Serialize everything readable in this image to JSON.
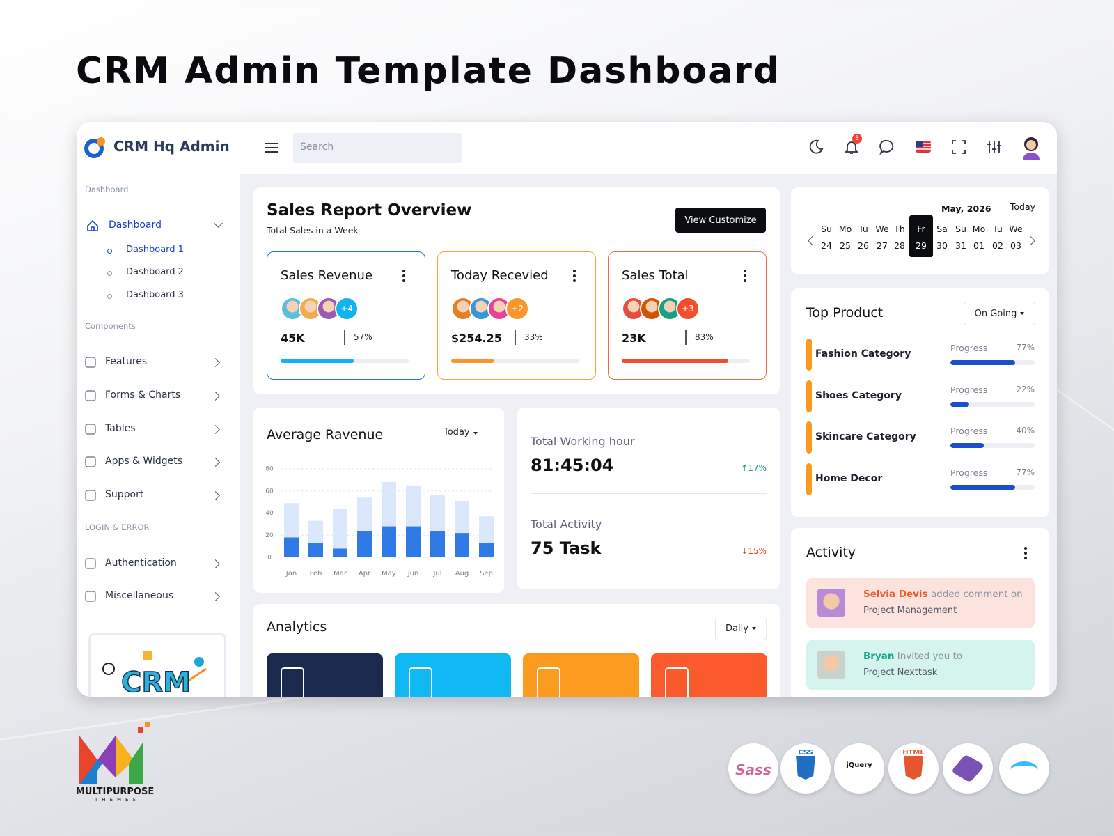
{
  "banner": {
    "title": "CRM Admin Template Dashboard"
  },
  "header": {
    "brand": "CRM Hq Admin",
    "search_placeholder": "Search",
    "notifications": 8
  },
  "sidebar": {
    "sections": [
      {
        "title": "Dashboard",
        "items": [
          {
            "label": "Dashboard",
            "children": [
              "Dashboard 1",
              "Dashboard 2",
              "Dashboard 3"
            ]
          }
        ]
      },
      {
        "title": "Components",
        "items": [
          {
            "label": "Features"
          },
          {
            "label": "Forms & Charts"
          },
          {
            "label": "Tables"
          },
          {
            "label": "Apps & Widgets"
          },
          {
            "label": "Support"
          }
        ]
      },
      {
        "title": "LOGIN & ERROR",
        "items": [
          {
            "label": "Authentication"
          },
          {
            "label": "Miscellaneous"
          }
        ]
      }
    ],
    "promo": "CRM"
  },
  "sales_report": {
    "title": "Sales Report Overview",
    "subtitle": "Total Sales in a Week",
    "button": "View Customize",
    "cards": [
      {
        "title": "Sales Revenue",
        "more": "+4",
        "value": "45K",
        "progress": {
          "value": 57,
          "label": "57%"
        },
        "color": "#2f6fd8",
        "bar_color": "#13b2f0"
      },
      {
        "title": "Today Recevied",
        "more": "+2",
        "value": "$254.25",
        "progress": {
          "value": 33,
          "label": "33%"
        },
        "color": "#f9a23c",
        "bar_color": "#f9962a"
      },
      {
        "title": "Sales Total",
        "more": "+3",
        "value": "23K",
        "progress": {
          "value": 83,
          "label": "83%"
        },
        "color": "#f2694a",
        "bar_color": "#f24e2e"
      }
    ]
  },
  "average_revenue": {
    "type": "bar",
    "title": "Average Ravenue",
    "filter": "Today",
    "categories": [
      "Jan",
      "Feb",
      "Mar",
      "Apr",
      "May",
      "Jun",
      "Jul",
      "Aug",
      "Sep"
    ],
    "series": [
      {
        "color": "#2f7ae5",
        "values": [
          18,
          13,
          8,
          24,
          28,
          28,
          24,
          22,
          13
        ]
      },
      {
        "color": "#dbe8fb",
        "values": [
          31,
          20,
          36,
          30,
          40,
          37,
          32,
          29,
          24
        ]
      }
    ],
    "stacked": true,
    "ylim": [
      0,
      80
    ],
    "yticks": [
      0,
      20,
      40,
      60,
      80
    ],
    "grid": true
  },
  "stats": [
    {
      "label": "Total Working hour",
      "value": "81:45:04",
      "change": "17%",
      "trend": "up"
    },
    {
      "label": "Total Activity",
      "value": "75 Task",
      "change": "15%",
      "trend": "down"
    }
  ],
  "analytics": {
    "title": "Analytics",
    "filter": "Daily",
    "tiles": [
      "#1b2b4f",
      "#10b8f4",
      "#fb9b1f",
      "#fb5a2d"
    ]
  },
  "calendar": {
    "month": "May, 2026",
    "today": "Today",
    "weekdays": [
      "Su",
      "Mo",
      "Tu",
      "We",
      "Th",
      "Fr",
      "Sa",
      "Su",
      "Mo",
      "Tu",
      "We"
    ],
    "dates": [
      "24",
      "25",
      "26",
      "27",
      "28",
      "29",
      "30",
      "31",
      "01",
      "02",
      "03"
    ],
    "selected_index": 5
  },
  "top_product": {
    "title": "Top Product",
    "filter": "On Going",
    "items": [
      {
        "name": "Fashion Category",
        "label": "Progress",
        "progress": {
          "value": 77,
          "label": "77%"
        }
      },
      {
        "name": "Shoes Category",
        "label": "Progress",
        "progress": {
          "value": 22,
          "label": "22%"
        }
      },
      {
        "name": "Skincare Category",
        "label": "Progress",
        "progress": {
          "value": 40,
          "label": "40%"
        }
      },
      {
        "name": "Home Decor",
        "label": "Progress",
        "progress": {
          "value": 77,
          "label": "77%"
        }
      }
    ]
  },
  "activity": {
    "title": "Activity",
    "items": [
      {
        "user": "Selvia Devis",
        "action": "added comment on",
        "target": "Project Management",
        "bg": "#fde3dd",
        "user_color": "#f0582c"
      },
      {
        "user": "Bryan",
        "action": "Invited you to",
        "target": "Project Nexttask",
        "bg": "#d6f4ee",
        "user_color": "#13a88b"
      }
    ]
  },
  "footer": {
    "brand": "MULTIPURPOSE",
    "tagline": "THEMES",
    "tech": [
      "Sass",
      "CSS",
      "jQuery",
      "HTML"
    ]
  }
}
